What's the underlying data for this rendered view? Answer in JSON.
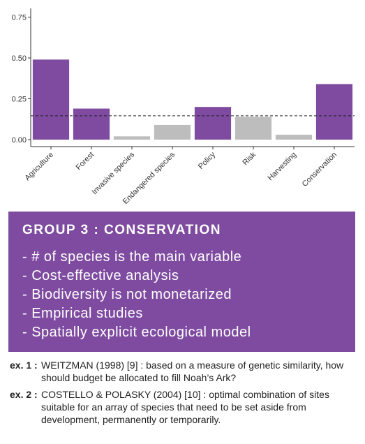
{
  "chart_data": {
    "type": "bar",
    "categories": [
      "Agriculture",
      "Forest",
      "Invasive species",
      "Endangered species",
      "Policy",
      "Risk",
      "Harvesting",
      "Conservation"
    ],
    "values": [
      0.49,
      0.19,
      0.02,
      0.09,
      0.2,
      0.14,
      0.03,
      0.34
    ],
    "highlighted": [
      true,
      true,
      false,
      false,
      true,
      false,
      false,
      true
    ],
    "ylim": [
      0,
      0.77
    ],
    "yticks": [
      "0.00",
      "0.25",
      "0.50",
      "0.75"
    ],
    "reference_line": 0.146,
    "title": "",
    "xlabel": "",
    "ylabel": "",
    "colors": {
      "highlight": "#7e4ba0",
      "other": "#bdbdbd",
      "reference": "#222222"
    }
  },
  "panel": {
    "title": "GROUP 3 : CONSERVATION",
    "items": [
      "- # of species is the main variable",
      "- Cost-effective analysis",
      "- Biodiversity is not monetarized",
      "- Empirical studies",
      "- Spatially explicit ecological model"
    ],
    "background": "#7e4ba0"
  },
  "examples": [
    {
      "label": "ex. 1 :",
      "author": "WEITZMAN (1998) [9] :",
      "text": " based on a measure of genetic similarity, how should budget be allocated to fill Noah’s Ark?"
    },
    {
      "label": "ex. 2 :",
      "author": "COSTELLO & POLASKY (2004) [10] :",
      "text": " optimal combination of sites suitable for an array of species that need to be set aside from development, permanently or temporarily."
    }
  ]
}
